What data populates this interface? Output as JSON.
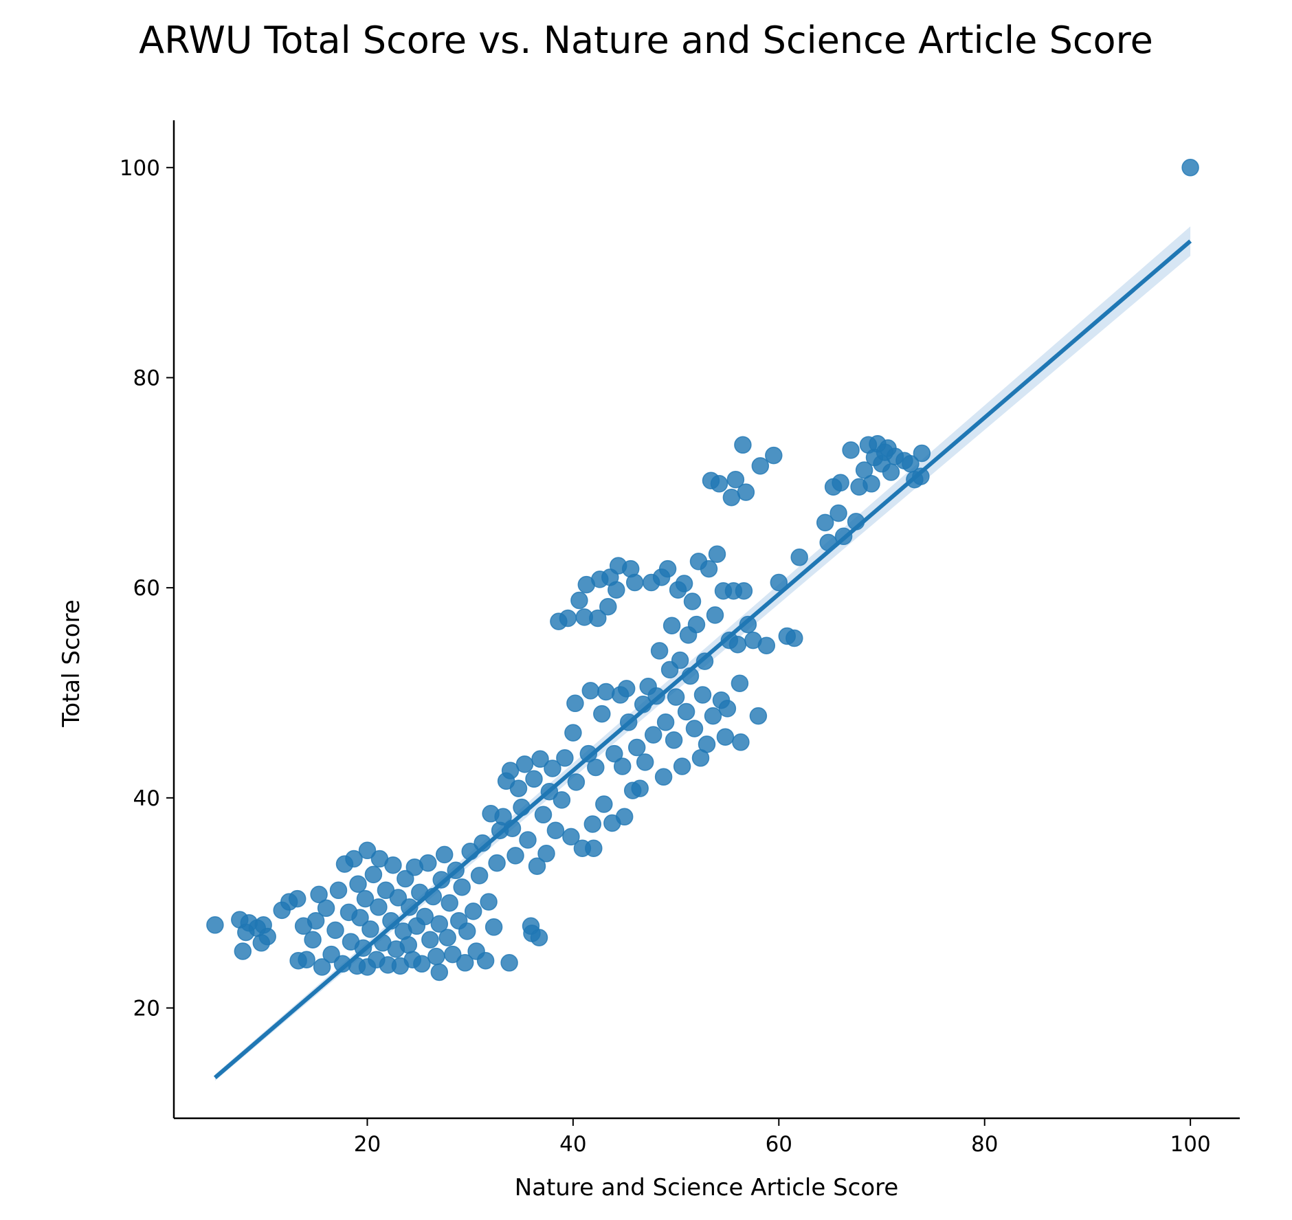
{
  "chart_data": {
    "type": "scatter",
    "title": "ARWU Total Score vs. Nature and Science Article Score",
    "xlabel": "Nature and Science Article Score",
    "ylabel": "Total Score",
    "xlim": [
      1.2,
      104.8
    ],
    "ylim": [
      9.5,
      104.5
    ],
    "x_ticks": [
      20,
      40,
      60,
      80,
      100
    ],
    "y_ticks": [
      20,
      40,
      60,
      80,
      100
    ],
    "grid": false,
    "legend": "none",
    "colors": {
      "points": "#1f77b4",
      "line": "#1f77b4",
      "band": "#a6c8e6"
    },
    "regression": {
      "x_range": [
        5.2,
        100
      ],
      "intercept": 9.0,
      "slope": 0.84,
      "ci_half_width_low_x": 0.3,
      "ci_half_width_high_x": 1.4
    },
    "points": [
      [
        5.2,
        27.9
      ],
      [
        7.6,
        28.4
      ],
      [
        7.9,
        25.4
      ],
      [
        8.5,
        28.1
      ],
      [
        9.3,
        27.6
      ],
      [
        9.9,
        27.9
      ],
      [
        8.2,
        27.2
      ],
      [
        10.3,
        26.8
      ],
      [
        9.7,
        26.2
      ],
      [
        11.7,
        29.3
      ],
      [
        12.4,
        30.1
      ],
      [
        13.2,
        30.4
      ],
      [
        13.8,
        27.8
      ],
      [
        13.3,
        24.5
      ],
      [
        14.1,
        24.6
      ],
      [
        14.7,
        26.5
      ],
      [
        15.0,
        28.3
      ],
      [
        15.3,
        30.8
      ],
      [
        15.6,
        23.9
      ],
      [
        16.0,
        29.5
      ],
      [
        16.5,
        25.1
      ],
      [
        16.9,
        27.4
      ],
      [
        17.2,
        31.2
      ],
      [
        17.6,
        24.2
      ],
      [
        17.8,
        33.7
      ],
      [
        18.2,
        29.1
      ],
      [
        18.4,
        26.3
      ],
      [
        18.7,
        34.2
      ],
      [
        19.0,
        24.0
      ],
      [
        19.1,
        31.8
      ],
      [
        19.3,
        28.6
      ],
      [
        19.6,
        25.7
      ],
      [
        19.8,
        30.4
      ],
      [
        20.0,
        23.9
      ],
      [
        20.0,
        35.0
      ],
      [
        20.3,
        27.5
      ],
      [
        20.6,
        32.7
      ],
      [
        20.9,
        24.6
      ],
      [
        21.1,
        29.6
      ],
      [
        21.2,
        34.2
      ],
      [
        21.5,
        26.2
      ],
      [
        21.8,
        31.2
      ],
      [
        22.0,
        24.1
      ],
      [
        22.3,
        28.3
      ],
      [
        22.5,
        33.6
      ],
      [
        22.8,
        25.6
      ],
      [
        23.0,
        30.5
      ],
      [
        23.2,
        24.0
      ],
      [
        23.5,
        27.3
      ],
      [
        23.7,
        32.3
      ],
      [
        24.0,
        26.0
      ],
      [
        24.1,
        29.6
      ],
      [
        24.4,
        24.6
      ],
      [
        24.6,
        33.4
      ],
      [
        24.8,
        27.8
      ],
      [
        25.1,
        31.0
      ],
      [
        25.3,
        24.2
      ],
      [
        25.6,
        28.7
      ],
      [
        25.9,
        33.8
      ],
      [
        26.1,
        26.5
      ],
      [
        26.4,
        30.6
      ],
      [
        26.7,
        24.9
      ],
      [
        27.0,
        28.0
      ],
      [
        27.0,
        23.4
      ],
      [
        27.2,
        32.2
      ],
      [
        27.5,
        34.6
      ],
      [
        27.8,
        26.7
      ],
      [
        28.0,
        30.0
      ],
      [
        28.3,
        25.1
      ],
      [
        28.6,
        33.1
      ],
      [
        28.9,
        28.3
      ],
      [
        29.2,
        31.5
      ],
      [
        29.5,
        24.3
      ],
      [
        29.7,
        27.3
      ],
      [
        30.0,
        34.9
      ],
      [
        30.3,
        29.2
      ],
      [
        30.6,
        25.4
      ],
      [
        30.9,
        32.6
      ],
      [
        31.2,
        35.7
      ],
      [
        31.5,
        24.5
      ],
      [
        31.8,
        30.1
      ],
      [
        32.0,
        38.5
      ],
      [
        32.3,
        27.7
      ],
      [
        32.6,
        33.8
      ],
      [
        32.9,
        36.9
      ],
      [
        33.2,
        38.2
      ],
      [
        33.5,
        41.6
      ],
      [
        33.8,
        24.3
      ],
      [
        33.9,
        42.6
      ],
      [
        34.1,
        37.1
      ],
      [
        34.4,
        34.5
      ],
      [
        34.7,
        40.9
      ],
      [
        35.0,
        39.1
      ],
      [
        35.3,
        43.2
      ],
      [
        35.6,
        36.0
      ],
      [
        35.9,
        27.8
      ],
      [
        36.0,
        27.1
      ],
      [
        36.2,
        41.8
      ],
      [
        36.5,
        33.5
      ],
      [
        36.7,
        26.7
      ],
      [
        36.8,
        43.7
      ],
      [
        37.1,
        38.4
      ],
      [
        37.4,
        34.7
      ],
      [
        37.7,
        40.6
      ],
      [
        38.0,
        42.8
      ],
      [
        38.3,
        36.9
      ],
      [
        38.6,
        56.8
      ],
      [
        38.9,
        39.8
      ],
      [
        39.2,
        43.8
      ],
      [
        39.5,
        57.1
      ],
      [
        39.8,
        36.3
      ],
      [
        40.0,
        46.2
      ],
      [
        40.2,
        49.0
      ],
      [
        40.3,
        41.5
      ],
      [
        40.6,
        58.8
      ],
      [
        40.9,
        35.2
      ],
      [
        41.1,
        57.2
      ],
      [
        41.3,
        60.3
      ],
      [
        41.5,
        44.2
      ],
      [
        41.7,
        50.2
      ],
      [
        41.9,
        37.5
      ],
      [
        42.0,
        35.2
      ],
      [
        42.2,
        42.9
      ],
      [
        42.4,
        57.1
      ],
      [
        42.6,
        60.8
      ],
      [
        42.8,
        48.0
      ],
      [
        43.0,
        39.4
      ],
      [
        43.2,
        50.1
      ],
      [
        43.4,
        58.2
      ],
      [
        43.6,
        61.0
      ],
      [
        43.8,
        37.6
      ],
      [
        44.0,
        44.2
      ],
      [
        44.2,
        59.8
      ],
      [
        44.4,
        62.1
      ],
      [
        44.6,
        49.8
      ],
      [
        44.8,
        43.0
      ],
      [
        45.0,
        38.2
      ],
      [
        45.2,
        50.4
      ],
      [
        45.4,
        47.2
      ],
      [
        45.6,
        61.8
      ],
      [
        45.8,
        40.7
      ],
      [
        46.0,
        60.5
      ],
      [
        46.2,
        44.8
      ],
      [
        46.5,
        40.9
      ],
      [
        46.8,
        48.9
      ],
      [
        47.0,
        43.4
      ],
      [
        47.3,
        50.6
      ],
      [
        47.6,
        60.5
      ],
      [
        47.8,
        46.0
      ],
      [
        48.1,
        49.7
      ],
      [
        48.4,
        54.0
      ],
      [
        48.6,
        61.0
      ],
      [
        48.8,
        42.0
      ],
      [
        49.0,
        47.2
      ],
      [
        49.2,
        61.8
      ],
      [
        49.4,
        52.2
      ],
      [
        49.6,
        56.4
      ],
      [
        49.8,
        45.5
      ],
      [
        50.0,
        49.6
      ],
      [
        50.2,
        59.8
      ],
      [
        50.4,
        53.1
      ],
      [
        50.6,
        43.0
      ],
      [
        50.8,
        60.4
      ],
      [
        51.0,
        48.2
      ],
      [
        51.2,
        55.5
      ],
      [
        51.4,
        51.6
      ],
      [
        51.6,
        58.7
      ],
      [
        51.8,
        46.6
      ],
      [
        52.0,
        56.5
      ],
      [
        52.2,
        62.5
      ],
      [
        52.4,
        43.8
      ],
      [
        52.6,
        49.8
      ],
      [
        52.8,
        53.0
      ],
      [
        53.0,
        45.1
      ],
      [
        53.2,
        61.8
      ],
      [
        53.4,
        70.2
      ],
      [
        53.6,
        47.8
      ],
      [
        53.8,
        57.4
      ],
      [
        54.0,
        63.2
      ],
      [
        54.2,
        69.9
      ],
      [
        54.4,
        49.3
      ],
      [
        54.6,
        59.7
      ],
      [
        54.8,
        45.8
      ],
      [
        55.0,
        48.5
      ],
      [
        55.2,
        55.0
      ],
      [
        55.4,
        68.6
      ],
      [
        55.6,
        59.7
      ],
      [
        55.8,
        70.3
      ],
      [
        56.0,
        54.6
      ],
      [
        56.2,
        50.9
      ],
      [
        56.3,
        45.3
      ],
      [
        56.5,
        73.6
      ],
      [
        56.6,
        59.7
      ],
      [
        56.8,
        69.1
      ],
      [
        57.0,
        56.5
      ],
      [
        57.5,
        55.0
      ],
      [
        58.0,
        47.8
      ],
      [
        58.2,
        71.6
      ],
      [
        58.8,
        54.5
      ],
      [
        59.5,
        72.6
      ],
      [
        60.0,
        60.5
      ],
      [
        60.8,
        55.4
      ],
      [
        61.5,
        55.2
      ],
      [
        62.0,
        62.9
      ],
      [
        64.5,
        66.2
      ],
      [
        64.8,
        64.3
      ],
      [
        65.3,
        69.6
      ],
      [
        65.8,
        67.1
      ],
      [
        66.0,
        70.0
      ],
      [
        66.3,
        64.9
      ],
      [
        67.0,
        73.1
      ],
      [
        67.5,
        66.3
      ],
      [
        67.8,
        69.6
      ],
      [
        68.3,
        71.2
      ],
      [
        68.7,
        73.6
      ],
      [
        69.0,
        69.9
      ],
      [
        69.3,
        72.4
      ],
      [
        69.6,
        73.7
      ],
      [
        70.0,
        71.8
      ],
      [
        70.3,
        72.9
      ],
      [
        70.6,
        73.3
      ],
      [
        70.9,
        71.0
      ],
      [
        71.3,
        72.5
      ],
      [
        72.2,
        72.1
      ],
      [
        72.8,
        71.8
      ],
      [
        73.2,
        70.3
      ],
      [
        73.8,
        70.6
      ],
      [
        73.9,
        72.8
      ],
      [
        100,
        100
      ]
    ]
  }
}
